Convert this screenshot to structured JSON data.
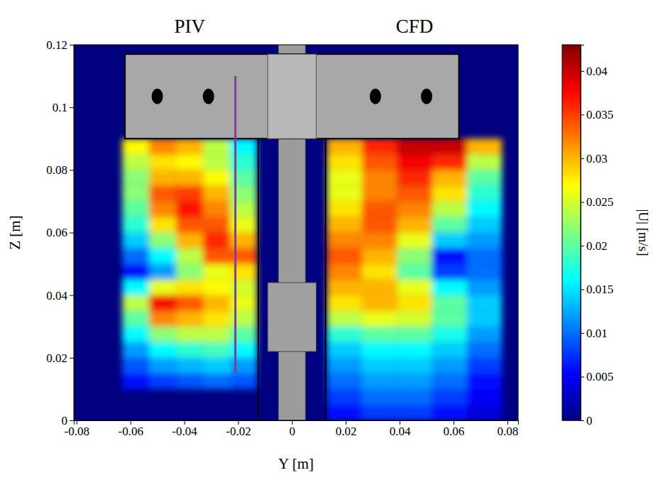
{
  "chart_data": {
    "type": "heatmap",
    "x_label": "Y [m]",
    "y_label": "Z [m]",
    "xlim": [
      -0.081,
      0.084
    ],
    "ylim": [
      0,
      0.12
    ],
    "xticks": [
      -0.08,
      -0.06,
      -0.04,
      -0.02,
      0,
      0.02,
      0.04,
      0.06,
      0.08
    ],
    "yticks": [
      0,
      0.02,
      0.04,
      0.06,
      0.08,
      0.1,
      0.12
    ],
    "panels": [
      {
        "title": "PIV",
        "x_edges": [
          -0.063,
          -0.053,
          -0.043,
          -0.033,
          -0.023,
          -0.013
        ],
        "y_edges": [
          0.01,
          0.015,
          0.02,
          0.025,
          0.03,
          0.035,
          0.04,
          0.045,
          0.05,
          0.055,
          0.06,
          0.065,
          0.07,
          0.075,
          0.08,
          0.085,
          0.09
        ],
        "values": [
          [
            0.006,
            0.008,
            0.009,
            0.01,
            0.009
          ],
          [
            0.009,
            0.012,
            0.013,
            0.014,
            0.012
          ],
          [
            0.012,
            0.016,
            0.018,
            0.019,
            0.016
          ],
          [
            0.016,
            0.022,
            0.024,
            0.024,
            0.02
          ],
          [
            0.02,
            0.032,
            0.03,
            0.028,
            0.024
          ],
          [
            0.024,
            0.038,
            0.034,
            0.03,
            0.026
          ],
          [
            0.016,
            0.026,
            0.028,
            0.027,
            0.025
          ],
          [
            0.006,
            0.012,
            0.022,
            0.026,
            0.028
          ],
          [
            0.01,
            0.016,
            0.024,
            0.034,
            0.034
          ],
          [
            0.014,
            0.022,
            0.03,
            0.036,
            0.03
          ],
          [
            0.018,
            0.028,
            0.034,
            0.034,
            0.026
          ],
          [
            0.02,
            0.032,
            0.037,
            0.032,
            0.024
          ],
          [
            0.022,
            0.034,
            0.035,
            0.03,
            0.022
          ],
          [
            0.022,
            0.03,
            0.03,
            0.027,
            0.02
          ],
          [
            0.024,
            0.028,
            0.027,
            0.024,
            0.018
          ],
          [
            0.027,
            0.032,
            0.03,
            0.024,
            0.016
          ]
        ]
      },
      {
        "title": "CFD",
        "x_edges": [
          0.013,
          0.026,
          0.039,
          0.052,
          0.065,
          0.078
        ],
        "y_edges": [
          0,
          0.005,
          0.01,
          0.015,
          0.02,
          0.025,
          0.03,
          0.035,
          0.04,
          0.045,
          0.05,
          0.055,
          0.06,
          0.065,
          0.07,
          0.075,
          0.08,
          0.085,
          0.09
        ],
        "values": [
          [
            0.006,
            0.008,
            0.008,
            0.006,
            0.004
          ],
          [
            0.008,
            0.01,
            0.01,
            0.008,
            0.005
          ],
          [
            0.01,
            0.012,
            0.012,
            0.01,
            0.006
          ],
          [
            0.012,
            0.014,
            0.014,
            0.012,
            0.008
          ],
          [
            0.014,
            0.016,
            0.016,
            0.014,
            0.01
          ],
          [
            0.018,
            0.02,
            0.02,
            0.017,
            0.012
          ],
          [
            0.024,
            0.026,
            0.025,
            0.02,
            0.014
          ],
          [
            0.028,
            0.03,
            0.028,
            0.02,
            0.014
          ],
          [
            0.03,
            0.03,
            0.026,
            0.016,
            0.012
          ],
          [
            0.032,
            0.028,
            0.02,
            0.008,
            0.01
          ],
          [
            0.034,
            0.03,
            0.022,
            0.006,
            0.01
          ],
          [
            0.032,
            0.032,
            0.026,
            0.014,
            0.012
          ],
          [
            0.03,
            0.034,
            0.03,
            0.02,
            0.014
          ],
          [
            0.028,
            0.034,
            0.032,
            0.024,
            0.016
          ],
          [
            0.026,
            0.032,
            0.034,
            0.028,
            0.018
          ],
          [
            0.026,
            0.032,
            0.036,
            0.03,
            0.02
          ],
          [
            0.028,
            0.034,
            0.038,
            0.036,
            0.024
          ],
          [
            0.03,
            0.036,
            0.04,
            0.04,
            0.03
          ]
        ]
      }
    ],
    "colorbar": {
      "label": "|U| [m/s]",
      "range": [
        0,
        0.043
      ],
      "ticks": [
        0,
        0.005,
        0.01,
        0.015,
        0.02,
        0.025,
        0.03,
        0.035,
        0.04
      ]
    },
    "lines": [
      {
        "color": "#7d3f98",
        "x": [
          -0.021,
          -0.021
        ],
        "y": [
          0.015,
          0.11
        ]
      }
    ]
  }
}
